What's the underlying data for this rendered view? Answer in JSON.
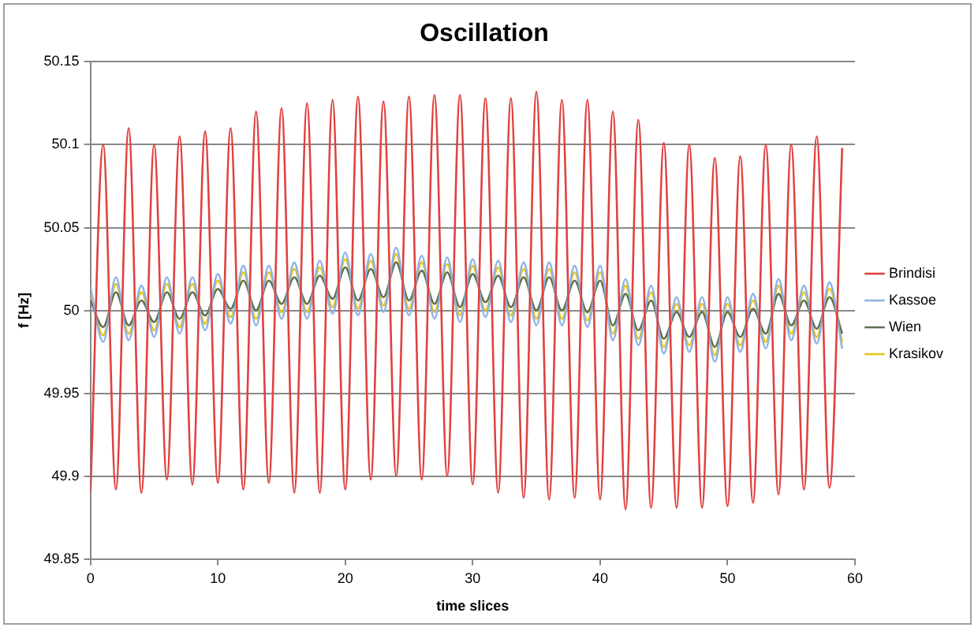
{
  "chart_data": {
    "type": "line",
    "title": "Oscillation",
    "xlabel": "time slices",
    "ylabel": "f [Hz]",
    "x": [
      0,
      1,
      2,
      3,
      4,
      5,
      6,
      7,
      8,
      9,
      10,
      11,
      12,
      13,
      14,
      15,
      16,
      17,
      18,
      19,
      20,
      21,
      22,
      23,
      24,
      25,
      26,
      27,
      28,
      29,
      30,
      31,
      32,
      33,
      34,
      35,
      36,
      37,
      38,
      39,
      40,
      41,
      42,
      43,
      44,
      45,
      46,
      47,
      48,
      49,
      50,
      51,
      52,
      53,
      54,
      55,
      56,
      57,
      58,
      59
    ],
    "xlim": [
      0,
      60
    ],
    "xticks": [
      0,
      10,
      20,
      30,
      40,
      50,
      60
    ],
    "ylim": [
      49.85,
      50.15
    ],
    "yticks": [
      49.85,
      49.9,
      49.95,
      50,
      50.05,
      50.1,
      50.15
    ],
    "grid": "y",
    "legend": "right",
    "marker": "none",
    "line_style": "solid",
    "series": [
      {
        "name": "Brindisi",
        "color": "#e0413f",
        "values": [
          49.89,
          50.1,
          49.892,
          50.11,
          49.89,
          50.1,
          49.898,
          50.105,
          49.895,
          50.108,
          49.896,
          50.11,
          49.892,
          50.12,
          49.896,
          50.122,
          49.89,
          50.125,
          49.89,
          50.127,
          49.892,
          50.129,
          49.898,
          50.126,
          49.9,
          50.129,
          49.898,
          50.13,
          49.9,
          50.13,
          49.895,
          50.128,
          49.89,
          50.128,
          49.887,
          50.132,
          49.886,
          50.127,
          49.887,
          50.127,
          49.886,
          50.12,
          49.88,
          50.115,
          49.881,
          50.101,
          49.881,
          50.1,
          49.881,
          50.092,
          49.882,
          50.093,
          49.884,
          50.1,
          49.889,
          50.1,
          49.892,
          50.105,
          49.893,
          50.098
        ]
      },
      {
        "name": "Kassoe",
        "color": "#8eb4e3",
        "values": [
          50.014,
          49.981,
          50.02,
          49.982,
          50.015,
          49.984,
          50.02,
          49.986,
          50.02,
          49.988,
          50.022,
          49.992,
          50.027,
          49.991,
          50.027,
          49.995,
          50.029,
          49.995,
          50.03,
          49.998,
          50.035,
          49.997,
          50.034,
          49.999,
          50.038,
          49.997,
          50.033,
          49.995,
          50.032,
          49.993,
          50.031,
          49.996,
          50.03,
          49.993,
          50.029,
          49.991,
          50.029,
          49.991,
          50.027,
          49.99,
          50.027,
          49.982,
          50.019,
          49.979,
          50.015,
          49.974,
          50.008,
          49.975,
          50.008,
          49.969,
          50.008,
          49.975,
          50.01,
          49.977,
          50.019,
          49.982,
          50.015,
          49.98,
          50.017,
          49.977
        ]
      },
      {
        "name": "Wien",
        "color": "#5f7050",
        "values": [
          50.006,
          49.99,
          50.011,
          49.991,
          50.006,
          49.993,
          50.011,
          49.995,
          50.011,
          49.997,
          50.013,
          50.001,
          50.018,
          50.0,
          50.018,
          50.004,
          50.02,
          50.004,
          50.021,
          50.007,
          50.026,
          50.006,
          50.025,
          50.008,
          50.029,
          50.006,
          50.024,
          50.004,
          50.023,
          50.002,
          50.022,
          50.005,
          50.021,
          50.002,
          50.02,
          50.0,
          50.02,
          50.0,
          50.018,
          49.999,
          50.018,
          49.991,
          50.01,
          49.988,
          50.006,
          49.983,
          49.999,
          49.984,
          49.999,
          49.978,
          49.999,
          49.984,
          50.001,
          49.986,
          50.01,
          49.991,
          50.006,
          49.989,
          50.008,
          49.986
        ]
      },
      {
        "name": "Krasikov",
        "color": "#e8c31a",
        "values": [
          50.01,
          49.985,
          50.016,
          49.986,
          50.011,
          49.988,
          50.016,
          49.99,
          50.016,
          49.992,
          50.018,
          49.996,
          50.023,
          49.995,
          50.023,
          49.999,
          50.025,
          49.999,
          50.026,
          50.002,
          50.031,
          50.001,
          50.03,
          50.003,
          50.034,
          50.001,
          50.029,
          49.999,
          50.028,
          49.997,
          50.027,
          50.0,
          50.026,
          49.997,
          50.025,
          49.995,
          50.025,
          49.995,
          50.023,
          49.994,
          50.023,
          49.986,
          50.015,
          49.983,
          50.011,
          49.978,
          50.004,
          49.979,
          50.004,
          49.973,
          50.004,
          49.979,
          50.006,
          49.981,
          50.015,
          49.986,
          50.011,
          49.984,
          50.013,
          49.981
        ]
      }
    ]
  }
}
